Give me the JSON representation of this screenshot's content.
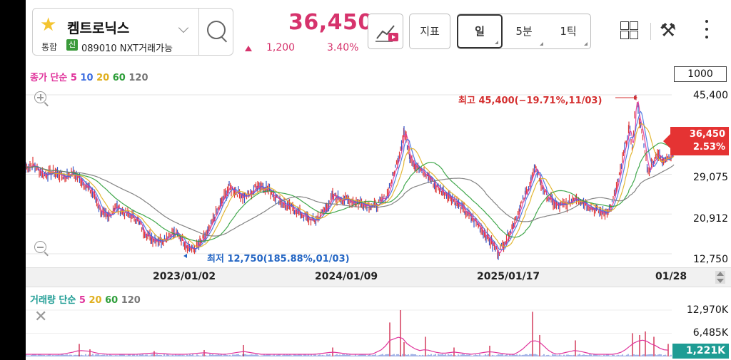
{
  "stock": {
    "name": "켐트로닉스",
    "market": "통합",
    "badge": "신",
    "code_info": "089010 NXT거래가능",
    "price": "36,450",
    "change": "1,200",
    "change_pct": "3.40%"
  },
  "toolbar": {
    "indicator_label": "지표",
    "periods": [
      "일",
      "5분",
      "1틱"
    ],
    "active_period": "일"
  },
  "price_chart": {
    "legend_prefix": "종가 단순",
    "ma_labels": [
      "5",
      "10",
      "20",
      "60",
      "120"
    ],
    "ma_colors": [
      "#e0339b",
      "#3f6fe0",
      "#e0b020",
      "#2e9e3a",
      "#777777"
    ],
    "ma_box": "1000",
    "y_labels": [
      "45,400",
      "29,075",
      "20,912",
      "12,750"
    ],
    "current_price": "36,450",
    "current_pct": "2.53%",
    "high_note": "최고 45,400(−19.71%,11/03)",
    "low_note": "최저 12,750(185.88%,01/03)"
  },
  "x_axis": {
    "labels": [
      "2023/01/02",
      "2024/01/09",
      "2025/01/17",
      "01/28"
    ]
  },
  "volume_chart": {
    "legend_prefix": "거래량 단순",
    "ma_labels": [
      "5",
      "20",
      "60",
      "120"
    ],
    "ma_colors": [
      "#e0339b",
      "#e0b020",
      "#2e9e3a",
      "#777777"
    ],
    "y_labels": [
      "12,970K",
      "6,485K"
    ],
    "current": "1,221K"
  },
  "colors": {
    "up": "#d6336c",
    "price_tag": "#e53333",
    "volume_tag": "#1e9c94",
    "high": "#d42f2f",
    "low": "#2466c4"
  },
  "chart_data": {
    "type": "line",
    "y_ticks": [
      45400,
      29075,
      20912,
      12750
    ],
    "ylim": [
      12750,
      45400
    ],
    "series_points": [
      [
        0,
        30500
      ],
      [
        10,
        31000
      ],
      [
        25,
        29000
      ],
      [
        40,
        29500
      ],
      [
        55,
        28500
      ],
      [
        65,
        29500
      ],
      [
        80,
        27500
      ],
      [
        95,
        25000
      ],
      [
        105,
        21500
      ],
      [
        115,
        20000
      ],
      [
        125,
        22500
      ],
      [
        140,
        21000
      ],
      [
        155,
        20000
      ],
      [
        165,
        17500
      ],
      [
        175,
        16000
      ],
      [
        190,
        15500
      ],
      [
        205,
        17000
      ],
      [
        215,
        16500
      ],
      [
        225,
        14500
      ],
      [
        235,
        13500
      ],
      [
        245,
        15000
      ],
      [
        255,
        17000
      ],
      [
        265,
        20500
      ],
      [
        275,
        23500
      ],
      [
        285,
        26500
      ],
      [
        295,
        25500
      ],
      [
        305,
        24500
      ],
      [
        315,
        25000
      ],
      [
        325,
        27000
      ],
      [
        340,
        26000
      ],
      [
        350,
        24500
      ],
      [
        365,
        22500
      ],
      [
        375,
        22000
      ],
      [
        385,
        21000
      ],
      [
        395,
        20000
      ],
      [
        405,
        19500
      ],
      [
        420,
        22000
      ],
      [
        430,
        24500
      ],
      [
        445,
        24000
      ],
      [
        460,
        23500
      ],
      [
        475,
        23000
      ],
      [
        490,
        22500
      ],
      [
        505,
        24500
      ],
      [
        515,
        29000
      ],
      [
        522,
        32500
      ],
      [
        530,
        38000
      ],
      [
        538,
        33000
      ],
      [
        545,
        31000
      ],
      [
        555,
        29500
      ],
      [
        565,
        28500
      ],
      [
        575,
        26500
      ],
      [
        585,
        25500
      ],
      [
        595,
        24500
      ],
      [
        605,
        23000
      ],
      [
        615,
        21500
      ],
      [
        625,
        20000
      ],
      [
        635,
        18500
      ],
      [
        645,
        16500
      ],
      [
        655,
        14500
      ],
      [
        662,
        13000
      ],
      [
        672,
        15500
      ],
      [
        682,
        18500
      ],
      [
        692,
        22000
      ],
      [
        700,
        25000
      ],
      [
        708,
        28000
      ],
      [
        715,
        30500
      ],
      [
        722,
        27000
      ],
      [
        730,
        24500
      ],
      [
        745,
        22500
      ],
      [
        760,
        23000
      ],
      [
        770,
        24500
      ],
      [
        780,
        23500
      ],
      [
        795,
        22000
      ],
      [
        810,
        21000
      ],
      [
        820,
        22500
      ],
      [
        830,
        27500
      ],
      [
        840,
        35000
      ],
      [
        845,
        38500
      ],
      [
        850,
        34500
      ],
      [
        855,
        45400
      ],
      [
        860,
        40000
      ],
      [
        866,
        35000
      ],
      [
        872,
        29500
      ],
      [
        878,
        31500
      ],
      [
        885,
        33500
      ],
      [
        892,
        31500
      ],
      [
        898,
        33000
      ],
      [
        904,
        32500
      ],
      [
        908,
        36450
      ]
    ],
    "volume_spikes": [
      [
        75,
        3500
      ],
      [
        90,
        2000
      ],
      [
        180,
        1500
      ],
      [
        250,
        1800
      ],
      [
        305,
        3200
      ],
      [
        430,
        2500
      ],
      [
        510,
        9500
      ],
      [
        525,
        12970
      ],
      [
        530,
        4000
      ],
      [
        560,
        5500
      ],
      [
        600,
        2500
      ],
      [
        650,
        3000
      ],
      [
        710,
        12500
      ],
      [
        720,
        6000
      ],
      [
        770,
        4500
      ],
      [
        850,
        6500
      ],
      [
        860,
        6000
      ],
      [
        868,
        7000
      ],
      [
        880,
        5500
      ],
      [
        900,
        3500
      ]
    ]
  }
}
